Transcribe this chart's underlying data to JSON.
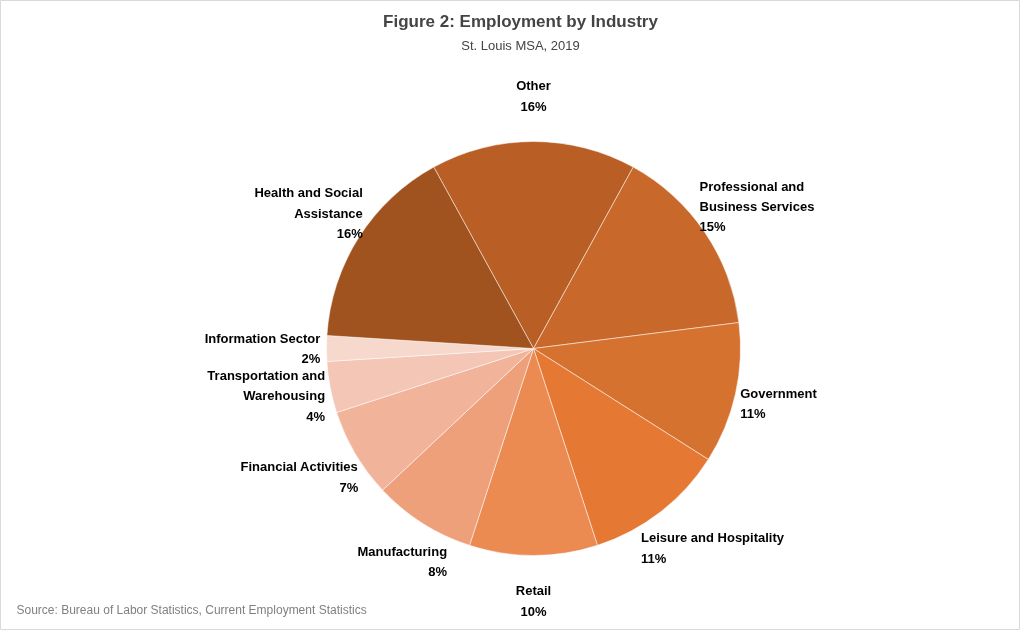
{
  "chart_data": {
    "type": "pie",
    "title": "Figure 2: Employment by Industry",
    "subtitle": "St. Louis MSA, 2019",
    "categories": [
      "Other",
      "Professional and Business Services",
      "Government",
      "Leisure and Hospitality",
      "Retail",
      "Manufacturing",
      "Financial Activities",
      "Transportation and Warehousing",
      "Information Sector",
      "Health and Social Assistance"
    ],
    "values": [
      16,
      15,
      11,
      11,
      10,
      8,
      7,
      4,
      2,
      16
    ],
    "value_labels": [
      "16%",
      "15%",
      "11%",
      "11%",
      "10%",
      "8%",
      "7%",
      "4%",
      "2%",
      "16%"
    ],
    "colors": [
      "#b95f25",
      "#c8692b",
      "#d67230",
      "#e57833",
      "#eb8b52",
      "#eea07b",
      "#f1b39a",
      "#f3c6b5",
      "#f6d8cd",
      "#a0531e"
    ],
    "annotations": [
      "Source: Bureau of Labor Statistics, Current Employment Statistics"
    ]
  }
}
